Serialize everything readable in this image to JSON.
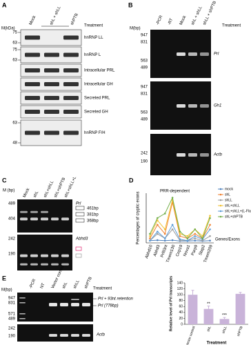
{
  "panels": {
    "A": {
      "label": "A",
      "unit": "M(kDa)",
      "treatment": "Treatment",
      "lanes": [
        "Mock",
        "shL + shLL",
        "shPTB"
      ],
      "blots": [
        {
          "name": "hnRNP LL",
          "markers": [
            "75",
            "63"
          ]
        },
        {
          "name": "hnRNP L",
          "markers": [
            "75",
            "63"
          ]
        },
        {
          "name": "Intracellular PRL",
          "markers": []
        },
        {
          "name": "Intracellular GH",
          "markers": []
        },
        {
          "name": "Secreted PRL",
          "markers": []
        },
        {
          "name": "Secreted GH",
          "markers": []
        },
        {
          "name": "hnRNP F/H",
          "markers": [
            "63",
            "48"
          ]
        }
      ]
    },
    "B": {
      "label": "B",
      "unit": "M(bp)",
      "treatment": "Treatment",
      "lanes": [
        "-PCR",
        "-RT",
        "Mock",
        "shL + shLL",
        "shLL + shPTB"
      ],
      "gels": [
        {
          "name": "Prl",
          "markers": [
            "947",
            "831",
            "563",
            "489"
          ]
        },
        {
          "name": "Gh1",
          "markers": [
            "947",
            "831",
            "563",
            "489"
          ]
        },
        {
          "name": "Actb",
          "markers": [
            "242",
            "190"
          ]
        }
      ]
    },
    "C": {
      "label": "C",
      "unit": "M (bp)",
      "lanes": [
        "Mock",
        "shL",
        "shL+shLL",
        "shL+shPTB",
        "shL+shLL+L"
      ],
      "gels": [
        {
          "name": "Prl",
          "markers": [
            "489",
            "404"
          ]
        },
        {
          "name": "Abhd3",
          "markers": [
            "242",
            "190"
          ]
        }
      ],
      "sizes": [
        "461bp",
        "381bp",
        "368bp"
      ]
    },
    "E": {
      "label": "E",
      "unit": "M(bp)",
      "treatment": "Treatment",
      "lanes": [
        "-PCR",
        "NT",
        "Vector control",
        "shL",
        "shLL",
        "shPTB"
      ],
      "markers_top": [
        "947",
        "831",
        "571",
        "489"
      ],
      "markers_bottom": [
        "242",
        "190"
      ],
      "band_labels": [
        "Prl + 93nt retention",
        "Prl (778bp)"
      ],
      "actb": "Actb"
    }
  },
  "chart_data": [
    {
      "type": "line",
      "label": "D",
      "title": "PRR-dependent",
      "ylabel": "Percentages of cryptic exons",
      "xlabel": "Genes/Exons",
      "categories": [
        "Abhd10",
        "Abhd3",
        "Prl93nt",
        "Tmem130",
        "Cep19",
        "Nova1",
        "Parp9",
        "Stap2",
        "Tmem209"
      ],
      "ylim": [
        0,
        110
      ],
      "legend": "upper right",
      "series": [
        {
          "name": "mock",
          "color": "#4f81bd",
          "values": [
            5,
            6,
            5,
            6,
            4,
            4,
            5,
            4,
            5
          ]
        },
        {
          "name": "shL",
          "color": "#f07f2d",
          "values": [
            10,
            40,
            20,
            90,
            15,
            10,
            20,
            10,
            40
          ]
        },
        {
          "name": "shLL",
          "color": "#9b9b9b",
          "values": [
            5,
            20,
            10,
            30,
            5,
            5,
            10,
            5,
            15
          ]
        },
        {
          "name": "shL+shLL",
          "color": "#f2c12e",
          "values": [
            15,
            50,
            30,
            95,
            20,
            15,
            30,
            15,
            60
          ]
        },
        {
          "name": "shL+shLL+(L-Flag)",
          "color": "#5b9bd5",
          "values": [
            5,
            25,
            10,
            40,
            8,
            5,
            15,
            8,
            30
          ]
        },
        {
          "name": "shL+shPTB",
          "color": "#70ad47",
          "values": [
            20,
            55,
            65,
            100,
            25,
            10,
            30,
            10,
            55
          ]
        }
      ]
    },
    {
      "type": "bar",
      "ylabel": "Relative level of Prl transcripts",
      "xlabel": "Treatment",
      "color": "#c9b3d9",
      "categories": [
        "Vector control",
        "shL",
        "shLL",
        "shPTB"
      ],
      "values": [
        100,
        52,
        18,
        103
      ],
      "errors": [
        15,
        10,
        5,
        5
      ],
      "annotations": [
        null,
        "**",
        "***",
        null
      ],
      "ylim": [
        0,
        140
      ],
      "yticks": [
        0,
        20,
        40,
        60,
        80,
        100,
        120,
        140
      ]
    }
  ]
}
